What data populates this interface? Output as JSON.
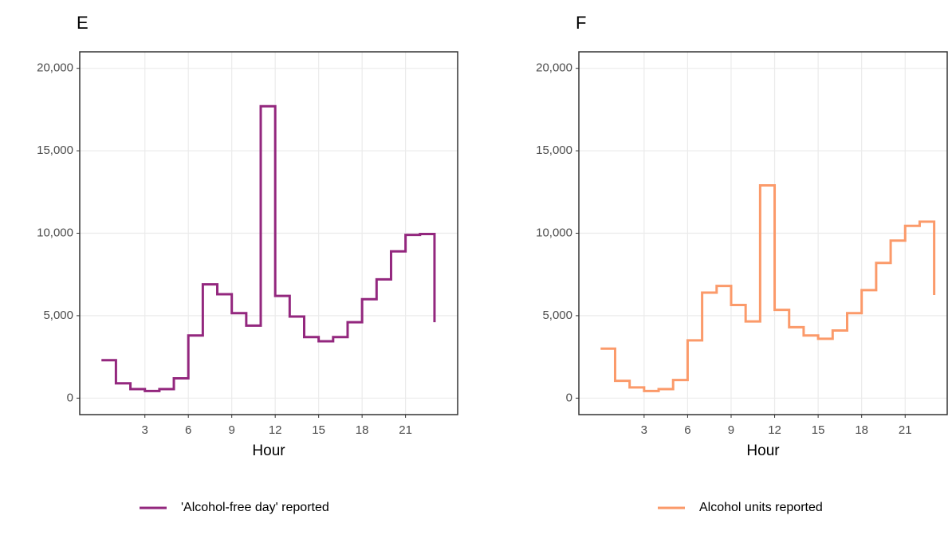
{
  "chart_data": [
    {
      "type": "step",
      "title": "E",
      "xlabel": "Hour",
      "x": [
        0,
        1,
        2,
        3,
        4,
        5,
        6,
        7,
        8,
        9,
        10,
        11,
        12,
        13,
        14,
        15,
        16,
        17,
        18,
        19,
        20,
        21,
        22,
        23
      ],
      "series": [
        {
          "name": "'Alcohol-free day' reported",
          "color": "#93277e",
          "values": [
            2300,
            900,
            550,
            430,
            550,
            1200,
            3800,
            6900,
            6300,
            5150,
            4400,
            17700,
            6200,
            4950,
            3700,
            3450,
            3700,
            4600,
            6000,
            7200,
            8900,
            9900,
            9950,
            4600
          ]
        }
      ],
      "xlim": [
        -1.5,
        24.6
      ],
      "xticks": [
        3,
        6,
        9,
        12,
        15,
        18,
        21
      ],
      "ylim": [
        -1000,
        21000
      ],
      "yticks": [
        0,
        {
          "value": 5000,
          "label": "5,000"
        },
        {
          "value": 10000,
          "label": "10,000"
        },
        {
          "value": 15000,
          "label": "15,000"
        },
        {
          "value": 20000,
          "label": "20,000"
        }
      ],
      "grid": true,
      "legend": "bottom"
    },
    {
      "type": "step",
      "title": "F",
      "xlabel": "Hour",
      "x": [
        0,
        1,
        2,
        3,
        4,
        5,
        6,
        7,
        8,
        9,
        10,
        11,
        12,
        13,
        14,
        15,
        16,
        17,
        18,
        19,
        20,
        21,
        22,
        23
      ],
      "series": [
        {
          "name": "Alcohol units reported",
          "color": "#fb9a6a",
          "values": [
            3000,
            1050,
            650,
            430,
            550,
            1100,
            3500,
            6400,
            6800,
            5650,
            4650,
            12900,
            5350,
            4300,
            3800,
            3600,
            4100,
            5150,
            6550,
            8200,
            9550,
            10450,
            10700,
            6250
          ]
        }
      ],
      "xlim": [
        -1.5,
        23.9
      ],
      "xticks": [
        3,
        6,
        9,
        12,
        15,
        18,
        21
      ],
      "ylim": [
        -1000,
        21000
      ],
      "yticks": [
        0,
        {
          "value": 5000,
          "label": "5,000"
        },
        {
          "value": 10000,
          "label": "10,000"
        },
        {
          "value": 15000,
          "label": "15,000"
        },
        {
          "value": 20000,
          "label": "20,000"
        }
      ],
      "grid": true,
      "legend": "bottom"
    }
  ]
}
